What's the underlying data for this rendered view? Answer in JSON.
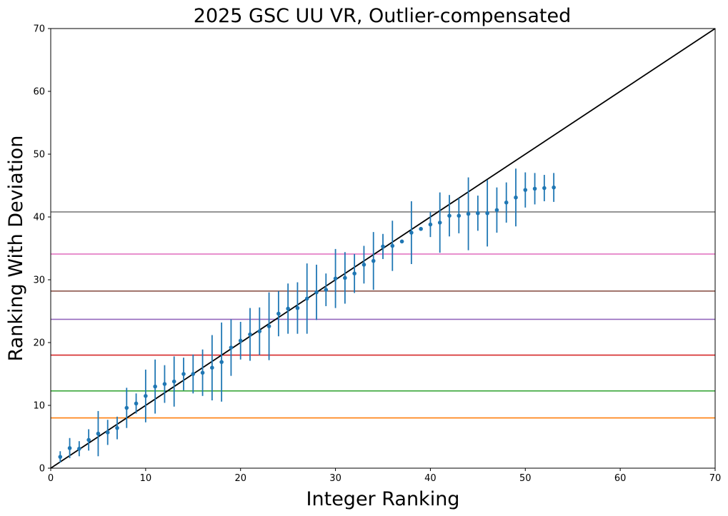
{
  "chart_data": {
    "type": "scatter",
    "title": "2025 GSC UU VR, Outlier-compensated",
    "xlabel": "Integer Ranking",
    "ylabel": "Ranking With Deviation",
    "xlim": [
      0,
      70
    ],
    "ylim": [
      0,
      70
    ],
    "xticks": [
      0,
      10,
      20,
      30,
      40,
      50,
      60,
      70
    ],
    "yticks": [
      0,
      10,
      20,
      30,
      40,
      50,
      60,
      70
    ],
    "grid": false,
    "series": [
      {
        "kind": "errorbar-scatter",
        "color": "#1f77b4",
        "x": [
          1,
          2,
          3,
          4,
          5,
          6,
          7,
          8,
          9,
          10,
          11,
          12,
          13,
          14,
          15,
          16,
          17,
          18,
          19,
          20,
          21,
          22,
          23,
          24,
          25,
          26,
          27,
          28,
          29,
          30,
          31,
          32,
          33,
          34,
          35,
          36,
          37,
          38,
          39,
          40,
          41,
          42,
          43,
          44,
          45,
          46,
          47,
          48,
          49,
          50,
          51,
          52,
          53
        ],
        "y": [
          1.8,
          3.2,
          3.1,
          4.5,
          5.5,
          5.7,
          6.4,
          9.6,
          10.3,
          11.5,
          13.0,
          13.4,
          13.8,
          15.0,
          15.0,
          15.2,
          16.0,
          16.9,
          19.2,
          20.3,
          21.3,
          21.8,
          22.6,
          24.6,
          25.4,
          25.5,
          27.0,
          28.0,
          28.4,
          30.2,
          30.3,
          31.0,
          32.4,
          33.0,
          35.3,
          35.4,
          36.1,
          37.5,
          38.1,
          38.8,
          39.1,
          40.2,
          40.2,
          40.5,
          40.6,
          40.6,
          41.1,
          42.3,
          43.1,
          44.3,
          44.5,
          44.6,
          44.7
        ],
        "yerr": [
          0.9,
          1.6,
          1.2,
          1.7,
          3.6,
          2.0,
          1.8,
          3.2,
          1.6,
          4.2,
          4.3,
          3.0,
          4.0,
          2.6,
          3.1,
          3.7,
          5.2,
          6.3,
          4.5,
          3.0,
          4.2,
          3.8,
          5.4,
          3.6,
          4.0,
          4.1,
          5.6,
          4.4,
          2.6,
          4.7,
          4.1,
          3.1,
          3.0,
          4.6,
          2.0,
          4.0,
          0.0,
          5.0,
          0.0,
          2.0,
          4.8,
          3.3,
          2.8,
          5.8,
          2.8,
          5.3,
          3.6,
          3.2,
          4.6,
          2.8,
          2.5,
          2.1,
          2.3
        ]
      },
      {
        "kind": "reference-line",
        "color": "#000000",
        "x": [
          0,
          70
        ],
        "y": [
          0,
          70
        ]
      }
    ],
    "hlines": [
      {
        "y": 8.0,
        "color": "#ff7f0e"
      },
      {
        "y": 12.3,
        "color": "#2ca02c"
      },
      {
        "y": 18.0,
        "color": "#d62728"
      },
      {
        "y": 23.7,
        "color": "#9467bd"
      },
      {
        "y": 28.2,
        "color": "#8c564b"
      },
      {
        "y": 34.1,
        "color": "#e377c2"
      },
      {
        "y": 40.8,
        "color": "#7f7f7f"
      }
    ]
  }
}
